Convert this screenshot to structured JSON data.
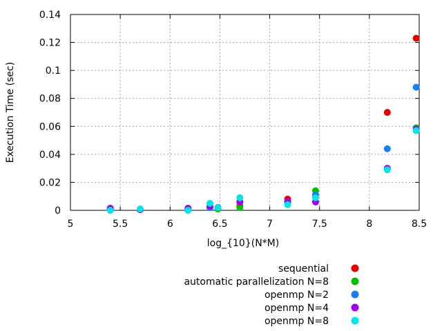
{
  "chart_data": {
    "type": "scatter",
    "title": "",
    "xlabel": "log_{10}(N*M)",
    "ylabel": "Execution Time (sec)",
    "xlim": [
      5,
      8.5
    ],
    "ylim": [
      0,
      0.14
    ],
    "xticks": [
      "5",
      "5.5",
      "6",
      "6.5",
      "7",
      "7.5",
      "8",
      "8.5"
    ],
    "xtick_values": [
      5,
      5.5,
      6,
      6.5,
      7,
      7.5,
      8,
      8.5
    ],
    "yticks": [
      "0",
      "0.02",
      "0.04",
      "0.06",
      "0.08",
      "0.1",
      "0.12",
      "0.14"
    ],
    "ytick_values": [
      0,
      0.02,
      0.04,
      0.06,
      0.08,
      0.1,
      0.12,
      0.14
    ],
    "grid": true,
    "legend_position": "bottom-right",
    "series": [
      {
        "name": "sequential",
        "color": "#e50000",
        "points": [
          [
            5.4,
            0.001
          ],
          [
            5.7,
            0.0005
          ],
          [
            6.18,
            0.001
          ],
          [
            6.4,
            0.002
          ],
          [
            6.48,
            0.002
          ],
          [
            6.7,
            0.003
          ],
          [
            7.18,
            0.008
          ],
          [
            7.46,
            0.011
          ],
          [
            8.18,
            0.07
          ],
          [
            8.47,
            0.123
          ]
        ]
      },
      {
        "name": "automatic parallelization N=8",
        "color": "#00c000",
        "points": [
          [
            5.4,
            0.001
          ],
          [
            5.7,
            0.0005
          ],
          [
            6.18,
            0.0005
          ],
          [
            6.4,
            0.002
          ],
          [
            6.48,
            0.001
          ],
          [
            6.7,
            0.002
          ],
          [
            7.18,
            0.006
          ],
          [
            7.46,
            0.014
          ],
          [
            8.18,
            0.03
          ],
          [
            8.47,
            0.059
          ]
        ]
      },
      {
        "name": "openmp N=2",
        "color": "#1a7ff0",
        "points": [
          [
            5.4,
            0.001
          ],
          [
            5.7,
            0.0005
          ],
          [
            6.18,
            0.001
          ],
          [
            6.4,
            0.002
          ],
          [
            6.48,
            0.002
          ],
          [
            6.7,
            0.006
          ],
          [
            7.18,
            0.006
          ],
          [
            7.46,
            0.011
          ],
          [
            8.18,
            0.044
          ],
          [
            8.47,
            0.088
          ]
        ]
      },
      {
        "name": "openmp N=4",
        "color": "#a000f0",
        "points": [
          [
            5.4,
            0.0015
          ],
          [
            5.7,
            0.0005
          ],
          [
            6.18,
            0.0015
          ],
          [
            6.4,
            0.003
          ],
          [
            6.48,
            0.002
          ],
          [
            6.7,
            0.006
          ],
          [
            7.18,
            0.006
          ],
          [
            7.46,
            0.006
          ],
          [
            8.18,
            0.03
          ],
          [
            8.47,
            0.058
          ]
        ]
      },
      {
        "name": "openmp N=8",
        "color": "#00e5e5",
        "points": [
          [
            5.4,
            0.0
          ],
          [
            5.7,
            0.001
          ],
          [
            6.18,
            0.0
          ],
          [
            6.4,
            0.005
          ],
          [
            6.48,
            0.002
          ],
          [
            6.7,
            0.009
          ],
          [
            7.18,
            0.004
          ],
          [
            7.46,
            0.009
          ],
          [
            8.18,
            0.029
          ],
          [
            8.47,
            0.057
          ]
        ]
      }
    ]
  }
}
